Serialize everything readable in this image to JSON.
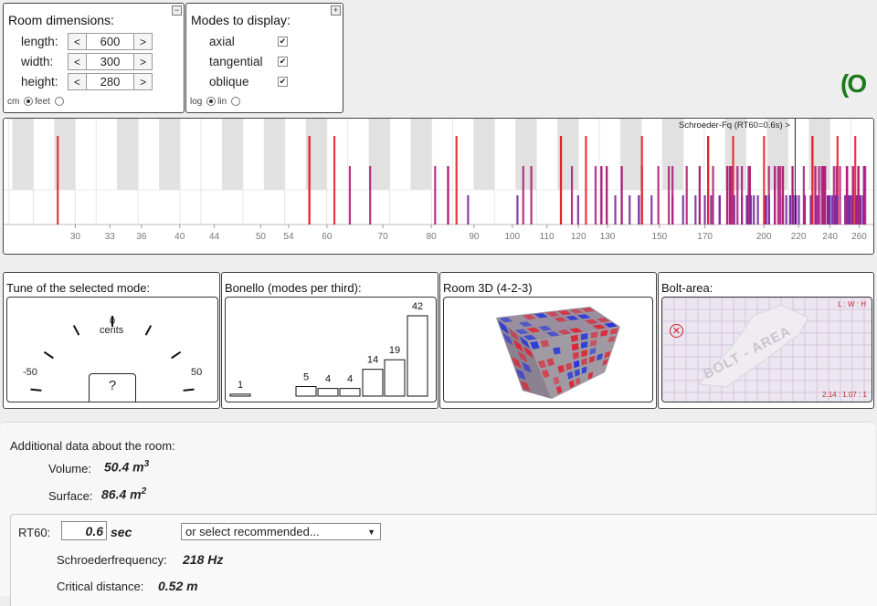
{
  "room": {
    "title": "Room dimensions:",
    "length_label": "length:",
    "width_label": "width:",
    "height_label": "height:",
    "length_value": "600",
    "width_value": "300",
    "height_value": "280",
    "dec_label": "<",
    "inc_label": ">",
    "unit_cm": "cm",
    "unit_feet": "feet",
    "collapse_symbol": "−"
  },
  "modes": {
    "title": "Modes to display:",
    "axial": "axial",
    "tangential": "tangential",
    "oblique": "oblique",
    "check": "✔",
    "scale_log": "log",
    "scale_lin": "lin",
    "expand_symbol": "+"
  },
  "logo": "(O",
  "spectrum": {
    "schroeder_label": "Schroeder-Fq (RT60=0.6s) >",
    "ticks": [
      "30",
      "33",
      "36",
      "40",
      "44",
      "50",
      "54",
      "60",
      "70",
      "80",
      "90",
      "100",
      "110",
      "120",
      "130",
      "150",
      "170",
      "200",
      "220",
      "240",
      "260"
    ]
  },
  "tune": {
    "title": "Tune of the selected mode:",
    "zero": "0",
    "cents": "cents",
    "minus": "-50",
    "plus": "50",
    "q": "?"
  },
  "bonello": {
    "title": "Bonello (modes per third):",
    "values": [
      1,
      0,
      0,
      5,
      4,
      4,
      14,
      19,
      42
    ]
  },
  "room3d": {
    "title": "Room 3D (4-2-3)"
  },
  "bolt": {
    "title": "Bolt-area:",
    "corner": "L : W : H",
    "ratio": "2.14 : 1.07 : 1",
    "watermark": "BOLT - AREA"
  },
  "additional": {
    "title": "Additional data about the room:",
    "volume_label": "Volume:",
    "volume_value": "50.4 m",
    "volume_exp": "3",
    "surface_label": "Surface:",
    "surface_value": "86.4 m",
    "surface_exp": "2",
    "rt60_label": "RT60:",
    "rt60_value": "0.6",
    "rt60_unit": "sec",
    "rt60_select": "or select recommended...",
    "schroeder_label": "Schroederfrequency:",
    "schroeder_value": "218 Hz",
    "critical_label": "Critical distance:",
    "critical_value": "0.52 m"
  },
  "colors": {
    "axial": "#e8202a",
    "tangential": "#b0207a",
    "oblique": "#7a2aa0",
    "logo": "#1a7a1a"
  }
}
